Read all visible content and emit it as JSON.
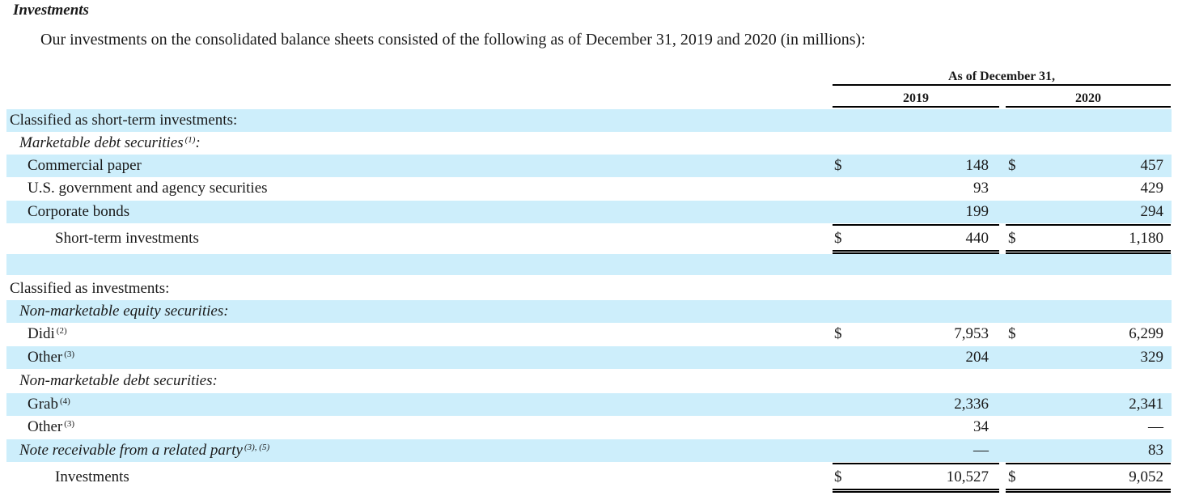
{
  "heading": "Investments",
  "intro": "Our investments on the consolidated balance sheets consisted of the following as of December 31, 2019 and 2020 (in millions):",
  "header": {
    "group": "As of December 31,",
    "col2019": "2019",
    "col2020": "2020"
  },
  "currency": "$",
  "rows": {
    "short_term_header": "Classified as short-term investments:",
    "marketable_debt": {
      "label": "Marketable debt securities",
      "note": "(1)",
      "suffix": ":"
    },
    "commercial_paper": {
      "label": "Commercial paper",
      "v2019": "148",
      "v2020": "457"
    },
    "us_gov": {
      "label": "U.S. government and agency securities",
      "v2019": "93",
      "v2020": "429"
    },
    "corporate_bonds": {
      "label": "Corporate bonds",
      "v2019": "199",
      "v2020": "294"
    },
    "short_term_total": {
      "label": "Short-term investments",
      "v2019": "440",
      "v2020": "1,180"
    },
    "investments_header": "Classified as investments:",
    "non_marketable_equity": "Non-marketable equity securities:",
    "didi": {
      "label": "Didi",
      "note": "(2)",
      "v2019": "7,953",
      "v2020": "6,299"
    },
    "other_equity": {
      "label": "Other",
      "note": "(3)",
      "v2019": "204",
      "v2020": "329"
    },
    "non_marketable_debt": "Non-marketable debt securities:",
    "grab": {
      "label": "Grab",
      "note": "(4)",
      "v2019": "2,336",
      "v2020": "2,341"
    },
    "other_debt": {
      "label": "Other",
      "note": "(3)",
      "v2019": "34",
      "v2020": "—"
    },
    "note_receivable": {
      "label": "Note receivable from a related party",
      "note": "(3), (5)",
      "v2019": "—",
      "v2020": "83"
    },
    "investments_total": {
      "label": "Investments",
      "v2019": "10,527",
      "v2020": "9,052"
    }
  }
}
